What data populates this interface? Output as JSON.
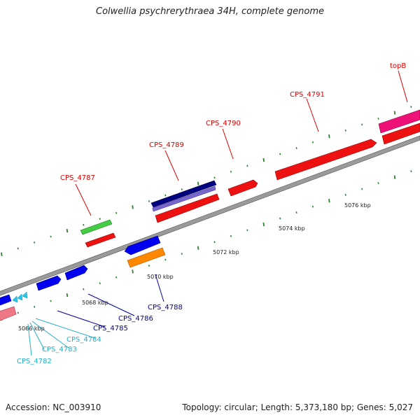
{
  "title": "Colwellia psychrerythraea 34H, complete genome",
  "footer": {
    "accession": "Accession: NC_003910",
    "topology": "Topology: circular; Length: 5,373,180 bp; Genes: 5,027"
  },
  "axis": {
    "ticks": [
      "5066 kbp",
      "5068 kbp",
      "5070 kbp",
      "5072 kbp",
      "5074 kbp",
      "5076 kbp"
    ]
  },
  "colors": {
    "backbone": "#8a8a8a",
    "tick": "#2e7d32",
    "label_red": "#dd0000",
    "label_navy": "#000099",
    "label_cyan": "#21b0c9"
  },
  "genes": [
    {
      "label": "CPS_4782",
      "color": "#28c7e8",
      "label_color": "#21b0c9",
      "strand": "minus"
    },
    {
      "label": "CPS_4783",
      "color": "#28c7e8",
      "label_color": "#21b0c9",
      "strand": "minus"
    },
    {
      "label": "CPS_4784",
      "color": "#28c7e8",
      "label_color": "#21b0c9",
      "strand": "minus"
    },
    {
      "label": "CPS_4785",
      "color": "#0000ee",
      "label_color": "#000099",
      "strand": "plus"
    },
    {
      "label": "CPS_4786",
      "color": "#0000ee",
      "label_color": "#000099",
      "strand": "plus"
    },
    {
      "label": "CPS_4787",
      "color": "#44cc44",
      "label_color": "#dd0000",
      "strand": "plus"
    },
    {
      "label": "CPS_4788",
      "color": "#0000ee",
      "label_color": "#000099",
      "strand": "minus"
    },
    {
      "label": "CPS_4789",
      "color": "#000080",
      "label_color": "#dd0000",
      "strand": "plus"
    },
    {
      "label": "CPS_4790",
      "color": "#ee1111",
      "label_color": "#dd0000",
      "strand": "plus"
    },
    {
      "label": "CPS_4791",
      "color": "#ee1111",
      "label_color": "#dd0000",
      "strand": "plus"
    },
    {
      "label": "topB",
      "color": "#ee1177",
      "label_color": "#dd0000",
      "strand": "plus"
    }
  ]
}
